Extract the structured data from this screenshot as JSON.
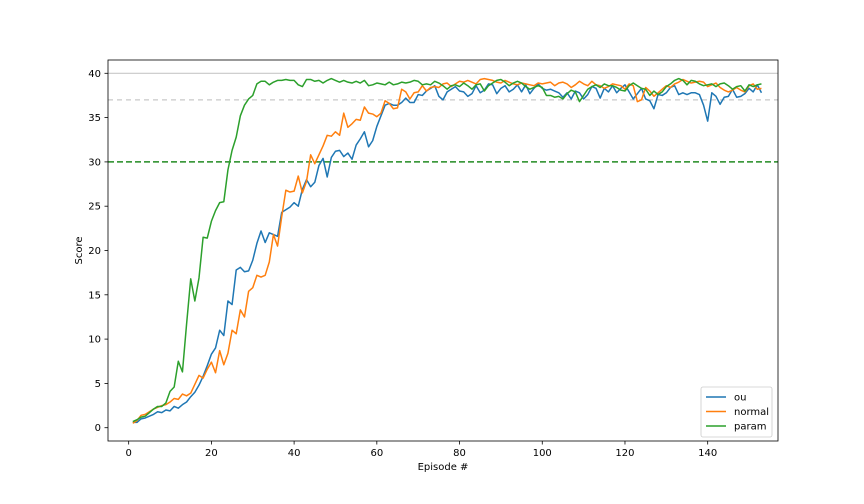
{
  "chart_data": {
    "type": "line",
    "title": "",
    "xlabel": "Episode #",
    "ylabel": "Score",
    "xlim": [
      -5,
      157
    ],
    "ylim": [
      -1.5,
      41.5
    ],
    "x_ticks": [
      0,
      20,
      40,
      60,
      80,
      100,
      120,
      140
    ],
    "y_ticks": [
      0,
      5,
      10,
      15,
      20,
      25,
      30,
      35,
      40
    ],
    "grid": false,
    "legend_position": "bottom-right",
    "reference_lines": [
      {
        "y": 40,
        "style": "solid",
        "color": "#c8c8c8"
      },
      {
        "y": 37,
        "style": "dashed",
        "color": "#c8c8c8"
      },
      {
        "y": 30,
        "style": "dashed",
        "color": "#228b22"
      }
    ],
    "x_start": 1,
    "x_step": 1,
    "series": [
      {
        "name": "ou",
        "color": "#1f77b4",
        "values": [
          0.6,
          0.6,
          1.0,
          1.1,
          1.3,
          1.5,
          1.8,
          1.7,
          2.0,
          1.9,
          2.4,
          2.2,
          2.6,
          2.9,
          3.5,
          4.0,
          4.8,
          5.8,
          7.0,
          8.3,
          9.0,
          11.0,
          10.4,
          14.3,
          13.9,
          17.8,
          18.1,
          17.6,
          17.7,
          18.9,
          20.8,
          22.2,
          20.9,
          22.0,
          21.8,
          21.6,
          24.3,
          24.6,
          24.9,
          25.4,
          25.0,
          26.9,
          28.0,
          27.2,
          27.7,
          29.6,
          30.4,
          28.3,
          30.5,
          31.2,
          31.3,
          30.6,
          31.0,
          30.3,
          31.9,
          32.6,
          33.4,
          31.7,
          32.4,
          34.0,
          35.2,
          36.4,
          36.6,
          36.4,
          36.4,
          36.7,
          37.2,
          36.7,
          36.7,
          37.6,
          37.5,
          38.0,
          38.3,
          38.6,
          37.4,
          37.0,
          37.9,
          38.2,
          38.5,
          38.0,
          37.9,
          37.4,
          37.7,
          38.6,
          37.8,
          38.1,
          38.8,
          38.7,
          37.7,
          38.3,
          38.6,
          37.9,
          38.2,
          38.7,
          37.9,
          38.7,
          37.7,
          38.3,
          38.8,
          38.3,
          38.1,
          38.2,
          38.0,
          37.8,
          37.3,
          37.8,
          37.1,
          38.0,
          37.8,
          37.1,
          37.6,
          38.5,
          38.3,
          37.2,
          38.3,
          37.9,
          38.6,
          37.8,
          38.3,
          38.7,
          37.9,
          37.1,
          37.7,
          38.3,
          37.1,
          36.9,
          36.0,
          37.6,
          37.5,
          37.8,
          38.4,
          38.6,
          37.6,
          37.8,
          37.6,
          37.8,
          37.8,
          37.6,
          36.4,
          34.6,
          37.8,
          37.4,
          36.5,
          37.3,
          37.4,
          38.2,
          37.3,
          37.4,
          37.7,
          38.3,
          37.9,
          38.7,
          37.8
        ]
      },
      {
        "name": "normal",
        "color": "#ff7f0e",
        "values": [
          0.5,
          0.8,
          1.4,
          1.5,
          1.8,
          2.1,
          2.3,
          2.5,
          2.6,
          2.9,
          3.3,
          3.2,
          3.8,
          3.6,
          3.9,
          4.9,
          5.9,
          5.6,
          6.6,
          7.4,
          6.2,
          8.7,
          7.1,
          8.4,
          11.0,
          10.6,
          13.3,
          12.5,
          15.4,
          15.8,
          17.2,
          17.0,
          17.2,
          18.7,
          21.8,
          20.5,
          23.8,
          26.8,
          26.6,
          26.7,
          28.4,
          26.5,
          27.8,
          30.8,
          29.8,
          30.8,
          31.8,
          33.0,
          32.9,
          33.4,
          33.0,
          35.5,
          33.9,
          34.3,
          34.8,
          34.7,
          36.2,
          35.5,
          35.4,
          35.1,
          35.5,
          36.9,
          36.6,
          36.0,
          36.1,
          38.2,
          37.9,
          37.1,
          37.8,
          37.9,
          38.6,
          38.0,
          38.4,
          38.5,
          38.4,
          38.8,
          38.9,
          38.5,
          38.8,
          39.1,
          39.0,
          39.2,
          39.0,
          38.8,
          39.3,
          39.4,
          39.3,
          39.2,
          39.0,
          38.9,
          39.2,
          39.0,
          38.8,
          38.7,
          38.9,
          38.8,
          38.7,
          38.6,
          38.9,
          38.8,
          38.9,
          39.0,
          38.6,
          38.9,
          39.0,
          38.8,
          38.4,
          38.7,
          39.1,
          38.8,
          38.6,
          39.1,
          38.7,
          38.6,
          38.3,
          38.5,
          38.8,
          38.7,
          38.6,
          38.2,
          38.8,
          38.6,
          36.8,
          37.0,
          38.4,
          38.0,
          37.4,
          37.8,
          38.2,
          38.6,
          38.4,
          38.8,
          39.0,
          39.3,
          39.1,
          38.9,
          39.0,
          39.1,
          39.0,
          38.5,
          38.7,
          38.9,
          38.4,
          38.1,
          37.9,
          38.1,
          38.4,
          38.1,
          37.9,
          38.6,
          38.8,
          38.2,
          38.3
        ]
      },
      {
        "name": "param",
        "color": "#2ca02c",
        "values": [
          0.7,
          0.9,
          1.2,
          1.3,
          1.7,
          2.1,
          2.4,
          2.4,
          2.8,
          4.1,
          4.6,
          7.5,
          6.3,
          11.7,
          16.8,
          14.3,
          16.9,
          21.5,
          21.4,
          23.3,
          24.5,
          25.4,
          25.5,
          29.1,
          31.3,
          32.8,
          35.2,
          36.4,
          37.1,
          37.5,
          38.8,
          39.1,
          39.1,
          38.7,
          39.0,
          39.2,
          39.2,
          39.3,
          39.2,
          39.2,
          38.7,
          38.5,
          39.3,
          39.3,
          39.1,
          39.2,
          38.9,
          39.2,
          39.4,
          39.2,
          39.0,
          39.2,
          39.0,
          38.9,
          39.1,
          38.9,
          39.2,
          38.6,
          38.7,
          38.9,
          38.8,
          38.7,
          39.0,
          38.7,
          38.8,
          39.0,
          38.9,
          39.0,
          39.2,
          39.1,
          38.7,
          38.8,
          38.7,
          39.1,
          38.9,
          38.6,
          38.2,
          38.6,
          38.7,
          38.5,
          38.9,
          38.6,
          38.2,
          38.7,
          38.8,
          38.0,
          38.6,
          38.9,
          39.2,
          39.3,
          39.0,
          38.6,
          38.9,
          39.1,
          38.9,
          38.5,
          38.2,
          38.4,
          38.6,
          38.4,
          37.5,
          37.5,
          37.3,
          37.4,
          37.1,
          37.7,
          38.1,
          37.9,
          36.8,
          37.5,
          38.2,
          38.5,
          38.7,
          38.4,
          38.8,
          38.6,
          38.6,
          38.4,
          38.1,
          38.0,
          38.6,
          38.9,
          38.6,
          38.3,
          38.2,
          37.5,
          38.0,
          37.6,
          37.9,
          38.5,
          38.8,
          39.2,
          39.4,
          39.2,
          38.7,
          39.2,
          39.1,
          38.8,
          38.6,
          38.7,
          38.8,
          38.5,
          38.8,
          38.9,
          38.6,
          38.2,
          38.5,
          38.6,
          38.0,
          38.7,
          38.5,
          38.7,
          38.8
        ]
      }
    ]
  }
}
